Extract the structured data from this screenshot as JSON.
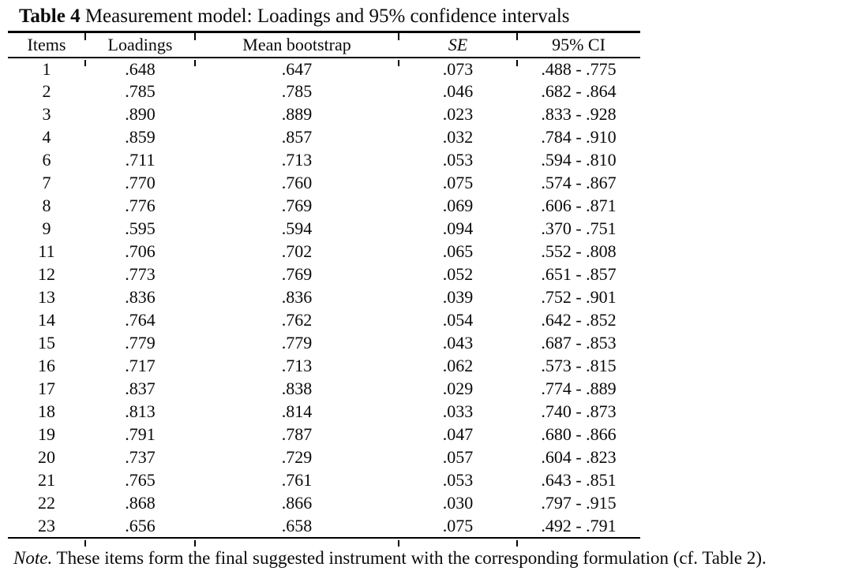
{
  "page": {
    "background": "#ffffff",
    "text_color": "#0a0a0a"
  },
  "table": {
    "title_label": "Table 4",
    "title_text": " Measurement model: Loadings and 95% confidence intervals",
    "columns": {
      "items": "Items",
      "loadings": "Loadings",
      "mean_bootstrap": "Mean bootstrap",
      "se": "SE",
      "ci": "95% CI"
    },
    "rows": [
      [
        "1",
        ".648",
        ".647",
        ".073",
        ".488 - .775"
      ],
      [
        "2",
        ".785",
        ".785",
        ".046",
        ".682 - .864"
      ],
      [
        "3",
        ".890",
        ".889",
        ".023",
        ".833 - .928"
      ],
      [
        "4",
        ".859",
        ".857",
        ".032",
        ".784 - .910"
      ],
      [
        "6",
        ".711",
        ".713",
        ".053",
        ".594 - .810"
      ],
      [
        "7",
        ".770",
        ".760",
        ".075",
        ".574 - .867"
      ],
      [
        "8",
        ".776",
        ".769",
        ".069",
        ".606 - .871"
      ],
      [
        "9",
        ".595",
        ".594",
        ".094",
        ".370 - .751"
      ],
      [
        "11",
        ".706",
        ".702",
        ".065",
        ".552 - .808"
      ],
      [
        "12",
        ".773",
        ".769",
        ".052",
        ".651 - .857"
      ],
      [
        "13",
        ".836",
        ".836",
        ".039",
        ".752 - .901"
      ],
      [
        "14",
        ".764",
        ".762",
        ".054",
        ".642 - .852"
      ],
      [
        "15",
        ".779",
        ".779",
        ".043",
        ".687 - .853"
      ],
      [
        "16",
        ".717",
        ".713",
        ".062",
        ".573 - .815"
      ],
      [
        "17",
        ".837",
        ".838",
        ".029",
        ".774 - .889"
      ],
      [
        "18",
        ".813",
        ".814",
        ".033",
        ".740 - .873"
      ],
      [
        "19",
        ".791",
        ".787",
        ".047",
        ".680 - .866"
      ],
      [
        "20",
        ".737",
        ".729",
        ".057",
        ".604 - .823"
      ],
      [
        "21",
        ".765",
        ".761",
        ".053",
        ".643 - .851"
      ],
      [
        "22",
        ".868",
        ".866",
        ".030",
        ".797 - .915"
      ],
      [
        "23",
        ".656",
        ".658",
        ".075",
        ".492 - .791"
      ]
    ],
    "note_label": "Note.",
    "note_text": " These items form the final suggested instrument with the corresponding formulation (cf. Table 2)."
  }
}
